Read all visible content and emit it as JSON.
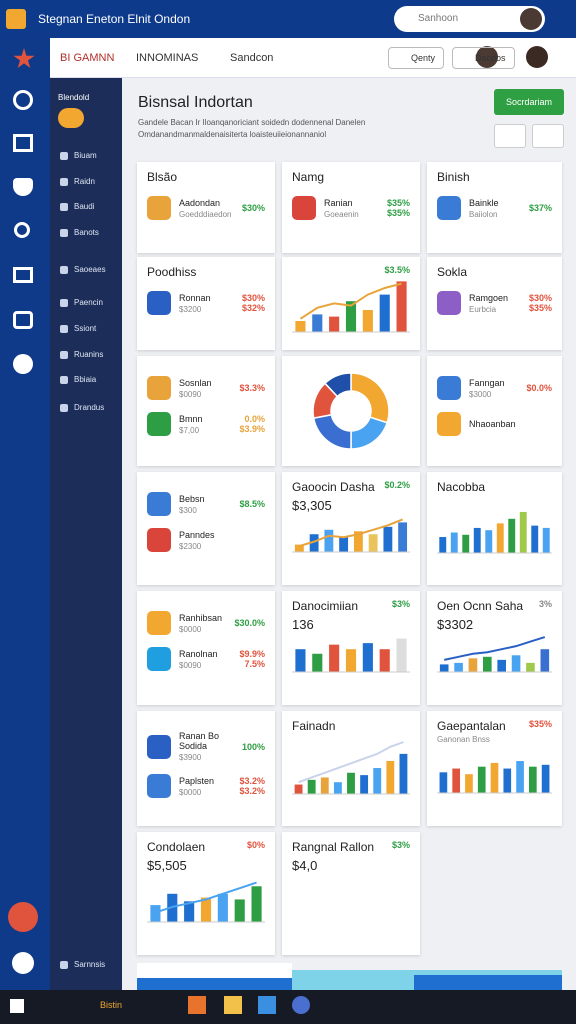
{
  "app_title": "Stegnan Eneton Elnit Ondon",
  "search_placeholder": "Sanhoon",
  "tabs": [
    "BI GAMNN",
    "INNOMINAS",
    "Sandcon"
  ],
  "header_buttons": [
    "Qenty",
    "Dacdos"
  ],
  "sidebar": {
    "heading": "Blendold",
    "items": [
      "Biuam",
      "Raidn",
      "Baudi",
      "Banots",
      "Saoeaes",
      "Paencin",
      "Ssiont",
      "Ruanins",
      "Bbiaia",
      "Drandus"
    ],
    "footer": "Sarnnsis"
  },
  "page": {
    "title": "Bisnsal Indortan",
    "subtitle": "Gandele Bacan Ir Iloanqanoriciant soidedn dodennenal Danelen Omdanandmanmaldenaisiterta loaisteuiieionannaniol",
    "action": "Socrdariam"
  },
  "taskbar_label": "Bistin",
  "cards": [
    {
      "title": "Blsão",
      "rows": [
        {
          "label": "Aadondan",
          "sub": "Goedddiaedon",
          "values": [
            "$30%"
          ],
          "value_color": "#2e9e44",
          "icon": "#e8a33a"
        }
      ]
    },
    {
      "title": "Namg",
      "rows": [
        {
          "label": "Ranian",
          "sub": "Goeaenin",
          "values": [
            "$35%",
            "$35%"
          ],
          "value_color": "#2e9e44",
          "icon": "#d9453b"
        }
      ]
    },
    {
      "title": "Binish",
      "rows": [
        {
          "label": "Bainkle",
          "sub": "Baiiolon",
          "values": [
            "$37%"
          ],
          "value_color": "#2e9e44",
          "icon": "#3a7bd5"
        }
      ]
    },
    {
      "title": "Poodhiss",
      "rows": [
        {
          "label": "Ronnan",
          "sub": "$3200",
          "values": [
            "$30%",
            "$32%"
          ],
          "value_color": "#e0533d",
          "icon": "#2a5fc4"
        }
      ]
    },
    {
      "delta": "$3.5%",
      "delta_color": "#2e9e44",
      "chart": {
        "ylim": [
          0,
          50
        ],
        "values": [
          10,
          16,
          14,
          28,
          20,
          34,
          46
        ],
        "colors": [
          "#f2a731",
          "#3a7bd5",
          "#e0533d",
          "#2e9e44",
          "#f2a731",
          "#1f6fd1",
          "#e0533d"
        ],
        "line": [
          12,
          22,
          26,
          24,
          34,
          40,
          44
        ],
        "line_color": "#e8a33a"
      }
    },
    {
      "title": "Sokla",
      "rows": [
        {
          "label": "Ramgoen",
          "sub": "Eurbcia",
          "values": [
            "$30%",
            "$35%"
          ],
          "value_color": "#e0533d",
          "icon": "#8e5ec7"
        }
      ]
    },
    {
      "rows": [
        {
          "label": "Sosnlan",
          "sub": "$0090",
          "values": [
            "$3.3%"
          ],
          "value_color": "#e0533d",
          "icon": "#e8a33a"
        },
        {
          "label": "Bmnn",
          "sub": "$7,00",
          "values": [
            "0.0%",
            "$3.9%"
          ],
          "value_color": "#e8a33a",
          "icon": "#2e9e44"
        }
      ]
    },
    {
      "donut": {
        "values": [
          30,
          20,
          22,
          16,
          12
        ],
        "colors": [
          "#f2a731",
          "#4aa3f0",
          "#3a6fd1",
          "#e0533d",
          "#1f4fa8"
        ]
      }
    },
    {
      "rows": [
        {
          "label": "Fanngan",
          "sub": "$3000",
          "values": [
            "$0.0%"
          ],
          "value_color": "#e0533d",
          "icon": "#3a7bd5"
        },
        {
          "label": "Nhaoanban",
          "icon": "#f2a731"
        }
      ]
    },
    {
      "rows": [
        {
          "label": "Bebsn",
          "sub": "$300",
          "values": [
            "$8.5%"
          ],
          "value_color": "#2e9e44",
          "icon": "#3a7bd5"
        },
        {
          "label": "Panndes",
          "sub": "$2300",
          "icon": "#d9453b"
        }
      ]
    },
    {
      "title": "Gaoocin Dasha",
      "kpi": "$3,305",
      "delta": "$0.2%",
      "delta_color": "#2e9e44",
      "chart": {
        "ylim": [
          0,
          50
        ],
        "values": [
          10,
          24,
          30,
          20,
          28,
          24,
          34,
          40
        ],
        "colors": [
          "#f2a731",
          "#1f6fd1",
          "#4aa3f0",
          "#1f6fd1",
          "#f2a731",
          "#e8c45a",
          "#1f6fd1",
          "#3a7bd5"
        ],
        "line": [
          8,
          14,
          22,
          20,
          24,
          30,
          36,
          44
        ],
        "line_color": "#e8a33a"
      }
    },
    {
      "title": "Nacobba",
      "chart": {
        "ylim": [
          0,
          50
        ],
        "values": [
          14,
          18,
          16,
          22,
          20,
          26,
          30,
          36,
          24,
          22
        ],
        "colors": [
          "#1f6fd1",
          "#4aa3f0",
          "#2e9e44",
          "#1f6fd1",
          "#4aa3f0",
          "#f2a731",
          "#2e9e44",
          "#a0c84a",
          "#1f6fd1",
          "#4aa3f0"
        ]
      }
    },
    {
      "rows": [
        {
          "label": "Ranhibsan",
          "sub": "$0000",
          "values": [
            "$30.0%"
          ],
          "value_color": "#2e9e44",
          "icon": "#f2a731"
        },
        {
          "label": "Ranolnan",
          "sub": "$0090",
          "values": [
            "$9.9%",
            "7.5%"
          ],
          "value_color": "#e0533d",
          "icon": "#1f9fe0"
        }
      ]
    },
    {
      "title": "Danocimiian",
      "kpi": "136",
      "delta": "$3%",
      "delta_color": "#2e9e44",
      "chart": {
        "ylim": [
          0,
          50
        ],
        "values": [
          30,
          24,
          36,
          30,
          38,
          30,
          44
        ],
        "colors": [
          "#1f6fd1",
          "#2e9e44",
          "#e0533d",
          "#f2a731",
          "#1f6fd1",
          "#e0533d",
          "#dddddd"
        ]
      }
    },
    {
      "title": "Oen Ocnn Saha",
      "kpi": "$3302",
      "delta": "3%",
      "delta_color": "#888888",
      "chart": {
        "ylim": [
          0,
          50
        ],
        "values": [
          10,
          12,
          18,
          20,
          16,
          22,
          12,
          30
        ],
        "colors": [
          "#1f6fd1",
          "#4aa3f0",
          "#e8a33a",
          "#2e9e44",
          "#1f6fd1",
          "#4aa3f0",
          "#a0c84a",
          "#3a6fd1"
        ],
        "line": [
          16,
          20,
          24,
          26,
          30,
          34,
          40,
          46
        ],
        "line_color": "#2a5fc4"
      }
    },
    {
      "rows": [
        {
          "label": "Ranan Bo Sodida",
          "sub": "$3900",
          "values": [
            "100%"
          ],
          "value_color": "#2e9e44",
          "icon": "#2a5fc4"
        },
        {
          "label": "Paplsten",
          "sub": "$0000",
          "values": [
            "$3.2%",
            "$3.2%"
          ],
          "value_color": "#e0533d",
          "icon": "#3a7bd5"
        }
      ]
    },
    {
      "title": "Fainadn",
      "chart": {
        "ylim": [
          0,
          50
        ],
        "values": [
          8,
          12,
          14,
          10,
          18,
          16,
          22,
          28,
          34
        ],
        "colors": [
          "#e0533d",
          "#2e9e44",
          "#e8a33a",
          "#4aa3f0",
          "#2e9e44",
          "#1f6fd1",
          "#4aa3f0",
          "#f2a731",
          "#1f6fd1"
        ],
        "line": [
          10,
          14,
          18,
          22,
          26,
          30,
          34,
          40,
          44
        ],
        "line_color": "#c9d3ea"
      }
    },
    {
      "title": "Gaepantalan",
      "subtitle": "Ganonan Bnss",
      "delta": "$35%",
      "delta_color": "#e0533d",
      "chart": {
        "ylim": [
          0,
          50
        ],
        "values": [
          22,
          26,
          20,
          28,
          32,
          26,
          34,
          28,
          30
        ],
        "colors": [
          "#1f6fd1",
          "#e0533d",
          "#f2a731",
          "#2e9e44",
          "#f2a731",
          "#1f6fd1",
          "#4aa3f0",
          "#2e9e44",
          "#1f6fd1"
        ]
      }
    },
    {
      "title": "Condolaen",
      "kpi": "$5,505",
      "delta": "$0%",
      "delta_color": "#e0533d",
      "chart": {
        "ylim": [
          0,
          50
        ],
        "values": [
          18,
          30,
          22,
          26,
          30,
          24,
          38
        ],
        "colors": [
          "#4aa3f0",
          "#1f6fd1",
          "#1f6fd1",
          "#f2a731",
          "#4aa3f0",
          "#2e9e44",
          "#2e9e44"
        ],
        "line": [
          10,
          16,
          20,
          24,
          30,
          36,
          42
        ],
        "line_color": "#4aa3f0"
      }
    },
    {
      "title": "Rangnal Rallon",
      "kpi": "$4,0",
      "delta": "$3%",
      "delta_color": "#2e9e44"
    }
  ]
}
